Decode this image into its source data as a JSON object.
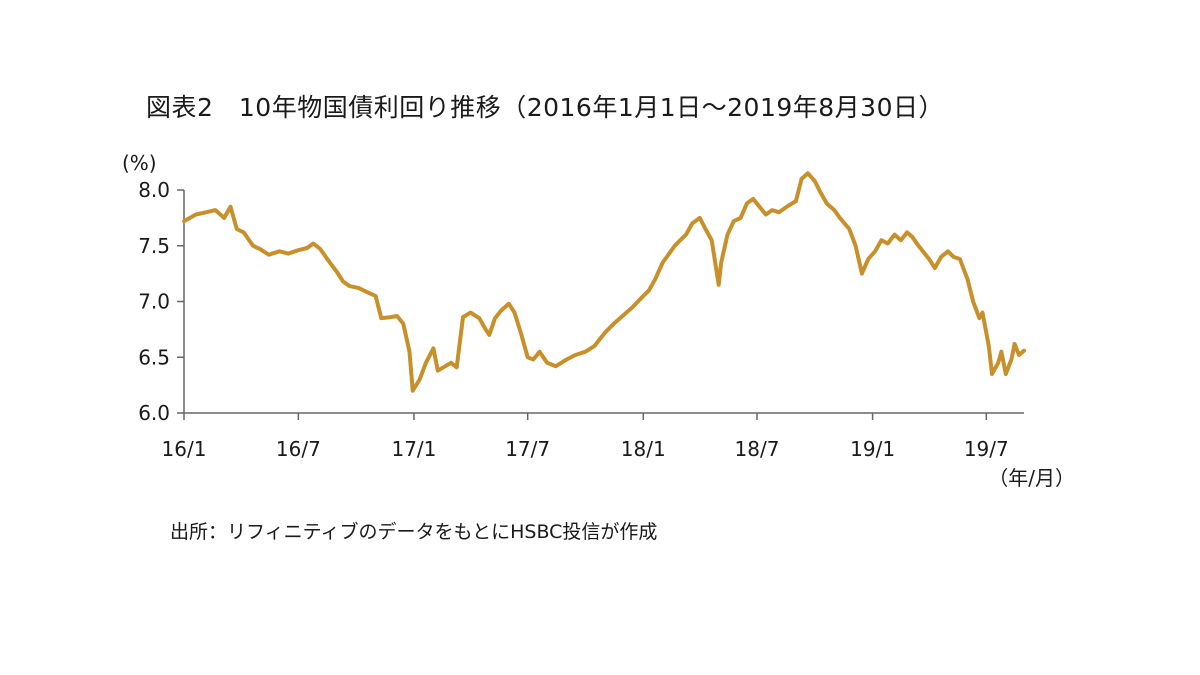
{
  "page": {
    "title": "図表2　10年物国債利回り推移（2016年1月1日～2019年8月30日）",
    "source": "出所：リフィニティブのデータをもとにHSBC投信が作成"
  },
  "chart_data": {
    "type": "line",
    "title": "図表2　10年物国債利回り推移（2016年1月1日～2019年8月30日）",
    "ylabel": "(%)",
    "xlabel": "（年/月）",
    "ylim": [
      6.0,
      8.0
    ],
    "yticks": [
      "6.0",
      "6.5",
      "7.0",
      "7.5",
      "8.0"
    ],
    "xticks": [
      "16/1",
      "16/7",
      "17/1",
      "17/7",
      "18/1",
      "18/7",
      "19/1",
      "19/7"
    ],
    "xlim": [
      "2016-01-01",
      "2019-08-30"
    ],
    "grid": false,
    "line_color": "#c8902a",
    "series": [
      {
        "points": [
          [
            "2016-01-01",
            7.72
          ],
          [
            "2016-01-20",
            7.78
          ],
          [
            "2016-02-05",
            7.8
          ],
          [
            "2016-02-20",
            7.82
          ],
          [
            "2016-03-05",
            7.75
          ],
          [
            "2016-03-15",
            7.85
          ],
          [
            "2016-03-25",
            7.65
          ],
          [
            "2016-04-05",
            7.62
          ],
          [
            "2016-04-20",
            7.5
          ],
          [
            "2016-05-01",
            7.47
          ],
          [
            "2016-05-15",
            7.42
          ],
          [
            "2016-06-01",
            7.45
          ],
          [
            "2016-06-15",
            7.43
          ],
          [
            "2016-07-01",
            7.46
          ],
          [
            "2016-07-15",
            7.48
          ],
          [
            "2016-07-25",
            7.52
          ],
          [
            "2016-08-05",
            7.47
          ],
          [
            "2016-08-20",
            7.35
          ],
          [
            "2016-09-01",
            7.26
          ],
          [
            "2016-09-10",
            7.18
          ],
          [
            "2016-09-20",
            7.14
          ],
          [
            "2016-10-05",
            7.12
          ],
          [
            "2016-10-20",
            7.08
          ],
          [
            "2016-11-01",
            7.05
          ],
          [
            "2016-11-10",
            6.85
          ],
          [
            "2016-11-25",
            6.86
          ],
          [
            "2016-12-05",
            6.87
          ],
          [
            "2016-12-15",
            6.8
          ],
          [
            "2016-12-25",
            6.55
          ],
          [
            "2016-12-30",
            6.2
          ],
          [
            "2017-01-10",
            6.3
          ],
          [
            "2017-01-20",
            6.45
          ],
          [
            "2017-02-01",
            6.58
          ],
          [
            "2017-02-08",
            6.38
          ],
          [
            "2017-02-20",
            6.42
          ],
          [
            "2017-03-01",
            6.45
          ],
          [
            "2017-03-10",
            6.41
          ],
          [
            "2017-03-20",
            6.86
          ],
          [
            "2017-04-01",
            6.9
          ],
          [
            "2017-04-15",
            6.85
          ],
          [
            "2017-04-25",
            6.75
          ],
          [
            "2017-05-01",
            6.7
          ],
          [
            "2017-05-10",
            6.85
          ],
          [
            "2017-05-20",
            6.92
          ],
          [
            "2017-06-01",
            6.98
          ],
          [
            "2017-06-10",
            6.9
          ],
          [
            "2017-06-20",
            6.72
          ],
          [
            "2017-07-01",
            6.5
          ],
          [
            "2017-07-10",
            6.48
          ],
          [
            "2017-07-20",
            6.55
          ],
          [
            "2017-08-01",
            6.45
          ],
          [
            "2017-08-15",
            6.42
          ],
          [
            "2017-09-01",
            6.48
          ],
          [
            "2017-09-15",
            6.52
          ],
          [
            "2017-10-01",
            6.55
          ],
          [
            "2017-10-15",
            6.6
          ],
          [
            "2017-11-01",
            6.72
          ],
          [
            "2017-11-15",
            6.8
          ],
          [
            "2017-12-01",
            6.88
          ],
          [
            "2017-12-15",
            6.95
          ],
          [
            "2018-01-01",
            7.05
          ],
          [
            "2018-01-10",
            7.1
          ],
          [
            "2018-01-20",
            7.2
          ],
          [
            "2018-02-01",
            7.35
          ],
          [
            "2018-02-10",
            7.42
          ],
          [
            "2018-02-20",
            7.5
          ],
          [
            "2018-03-01",
            7.55
          ],
          [
            "2018-03-10",
            7.6
          ],
          [
            "2018-03-20",
            7.7
          ],
          [
            "2018-04-01",
            7.75
          ],
          [
            "2018-04-10",
            7.65
          ],
          [
            "2018-04-20",
            7.55
          ],
          [
            "2018-05-01",
            7.15
          ],
          [
            "2018-05-05",
            7.35
          ],
          [
            "2018-05-15",
            7.6
          ],
          [
            "2018-05-25",
            7.72
          ],
          [
            "2018-06-05",
            7.75
          ],
          [
            "2018-06-15",
            7.88
          ],
          [
            "2018-06-25",
            7.92
          ],
          [
            "2018-07-05",
            7.85
          ],
          [
            "2018-07-15",
            7.78
          ],
          [
            "2018-07-25",
            7.82
          ],
          [
            "2018-08-05",
            7.8
          ],
          [
            "2018-08-20",
            7.86
          ],
          [
            "2018-09-01",
            7.9
          ],
          [
            "2018-09-10",
            8.1
          ],
          [
            "2018-09-20",
            8.15
          ],
          [
            "2018-10-01",
            8.08
          ],
          [
            "2018-10-10",
            7.98
          ],
          [
            "2018-10-20",
            7.88
          ],
          [
            "2018-11-01",
            7.82
          ],
          [
            "2018-11-10",
            7.75
          ],
          [
            "2018-11-25",
            7.65
          ],
          [
            "2018-12-05",
            7.5
          ],
          [
            "2018-12-15",
            7.25
          ],
          [
            "2018-12-25",
            7.38
          ],
          [
            "2019-01-05",
            7.45
          ],
          [
            "2019-01-15",
            7.55
          ],
          [
            "2019-01-25",
            7.52
          ],
          [
            "2019-02-05",
            7.6
          ],
          [
            "2019-02-15",
            7.55
          ],
          [
            "2019-02-25",
            7.62
          ],
          [
            "2019-03-05",
            7.58
          ],
          [
            "2019-03-15",
            7.5
          ],
          [
            "2019-04-01",
            7.38
          ],
          [
            "2019-04-10",
            7.3
          ],
          [
            "2019-04-20",
            7.4
          ],
          [
            "2019-05-01",
            7.45
          ],
          [
            "2019-05-10",
            7.4
          ],
          [
            "2019-05-20",
            7.38
          ],
          [
            "2019-06-01",
            7.2
          ],
          [
            "2019-06-10",
            7.0
          ],
          [
            "2019-06-20",
            6.85
          ],
          [
            "2019-06-25",
            6.9
          ],
          [
            "2019-07-05",
            6.6
          ],
          [
            "2019-07-10",
            6.35
          ],
          [
            "2019-07-20",
            6.45
          ],
          [
            "2019-07-25",
            6.55
          ],
          [
            "2019-08-01",
            6.35
          ],
          [
            "2019-08-10",
            6.48
          ],
          [
            "2019-08-15",
            6.62
          ],
          [
            "2019-08-22",
            6.52
          ],
          [
            "2019-08-30",
            6.56
          ]
        ]
      }
    ]
  }
}
